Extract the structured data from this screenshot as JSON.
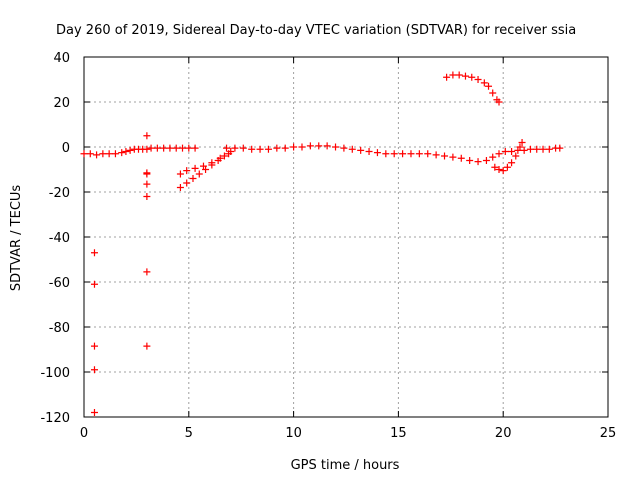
{
  "chart_data": {
    "type": "scatter",
    "title": "Day 260 of 2019, Sidereal Day-to-day VTEC variation (SDTVAR) for receiver ssia",
    "xlabel": "GPS time / hours",
    "ylabel": "SDTVAR / TECUs",
    "xlim": [
      0,
      25
    ],
    "ylim": [
      -120,
      40
    ],
    "xticks": [
      0,
      5,
      10,
      15,
      20,
      25
    ],
    "yticks": [
      40,
      20,
      0,
      -20,
      -40,
      -60,
      -80,
      -100,
      -120
    ],
    "xtick_labels": [
      "0",
      "5",
      "10",
      "15",
      "20",
      "25"
    ],
    "ytick_labels": [
      "40",
      "20",
      "0",
      "-20",
      "-40",
      "-60",
      "-80",
      "-100",
      "-120"
    ],
    "grid": true,
    "marker": "+",
    "color": "#ff0000",
    "series": [
      {
        "name": "main-band",
        "points": [
          [
            0.0,
            -3
          ],
          [
            0.3,
            -3
          ],
          [
            0.6,
            -3.5
          ],
          [
            0.9,
            -3
          ],
          [
            1.2,
            -3
          ],
          [
            1.5,
            -3
          ],
          [
            1.8,
            -2.5
          ],
          [
            2.0,
            -2
          ],
          [
            2.2,
            -1.5
          ],
          [
            2.4,
            -1
          ],
          [
            2.6,
            -1
          ],
          [
            2.8,
            -1
          ],
          [
            3.0,
            -1
          ],
          [
            3.2,
            -0.5
          ],
          [
            3.5,
            -0.5
          ],
          [
            3.8,
            -0.5
          ],
          [
            4.1,
            -0.5
          ],
          [
            4.4,
            -0.5
          ],
          [
            4.7,
            -0.5
          ],
          [
            5.0,
            -0.5
          ],
          [
            5.3,
            -0.5
          ],
          [
            6.8,
            -0.5
          ],
          [
            7.2,
            -0.5
          ],
          [
            7.6,
            -0.5
          ],
          [
            8.0,
            -1
          ],
          [
            8.4,
            -1
          ],
          [
            8.8,
            -1
          ],
          [
            9.2,
            -0.5
          ],
          [
            9.6,
            -0.5
          ],
          [
            10.0,
            0
          ],
          [
            10.4,
            0
          ],
          [
            10.8,
            0.5
          ],
          [
            11.2,
            0.5
          ],
          [
            11.6,
            0.5
          ],
          [
            12.0,
            0
          ],
          [
            12.4,
            -0.5
          ],
          [
            12.8,
            -1
          ],
          [
            13.2,
            -1.5
          ],
          [
            13.6,
            -2
          ],
          [
            14.0,
            -2.5
          ],
          [
            14.4,
            -3
          ],
          [
            14.8,
            -3
          ],
          [
            15.2,
            -3
          ],
          [
            15.6,
            -3
          ],
          [
            16.0,
            -3
          ],
          [
            16.4,
            -3
          ],
          [
            16.8,
            -3.5
          ],
          [
            17.2,
            -4
          ],
          [
            17.6,
            -4.5
          ],
          [
            18.0,
            -5
          ],
          [
            18.4,
            -6
          ],
          [
            18.8,
            -6.5
          ],
          [
            19.2,
            -6
          ],
          [
            19.5,
            -4.5
          ],
          [
            19.8,
            -3
          ],
          [
            20.1,
            -2
          ],
          [
            20.4,
            -2
          ],
          [
            20.7,
            -1.5
          ],
          [
            21.0,
            -1.5
          ],
          [
            21.3,
            -1
          ],
          [
            21.6,
            -1
          ],
          [
            21.9,
            -1
          ],
          [
            22.2,
            -1
          ],
          [
            22.5,
            -0.5
          ],
          [
            22.7,
            -0.5
          ]
        ]
      },
      {
        "name": "lower-branch-5h",
        "points": [
          [
            4.6,
            -18
          ],
          [
            4.9,
            -16
          ],
          [
            5.2,
            -14
          ],
          [
            5.5,
            -12
          ],
          [
            5.8,
            -10
          ],
          [
            6.1,
            -8
          ],
          [
            6.4,
            -6
          ],
          [
            6.7,
            -4
          ],
          [
            7.0,
            -2
          ]
        ]
      },
      {
        "name": "second-branch-5h",
        "points": [
          [
            4.6,
            -12
          ],
          [
            4.9,
            -10.5
          ],
          [
            5.3,
            -9.5
          ],
          [
            5.7,
            -8.5
          ],
          [
            6.1,
            -7
          ],
          [
            6.5,
            -5
          ],
          [
            6.9,
            -3
          ]
        ]
      },
      {
        "name": "arc-18h",
        "points": [
          [
            17.3,
            31
          ],
          [
            17.6,
            32
          ],
          [
            17.9,
            32
          ],
          [
            18.2,
            31.5
          ],
          [
            18.5,
            31
          ],
          [
            18.8,
            30
          ],
          [
            19.1,
            28.5
          ],
          [
            19.3,
            27
          ],
          [
            19.5,
            24
          ],
          [
            19.7,
            21
          ],
          [
            19.8,
            20
          ]
        ]
      },
      {
        "name": "dip-20h",
        "points": [
          [
            19.6,
            -9
          ],
          [
            19.8,
            -10
          ],
          [
            20.0,
            -10.5
          ],
          [
            20.2,
            -9
          ],
          [
            20.4,
            -7
          ],
          [
            20.6,
            -4
          ],
          [
            20.8,
            0
          ],
          [
            20.9,
            2
          ]
        ]
      },
      {
        "name": "outliers",
        "points": [
          [
            0.5,
            -47
          ],
          [
            0.5,
            -61
          ],
          [
            0.5,
            -88.5
          ],
          [
            0.5,
            -99
          ],
          [
            0.5,
            -118
          ],
          [
            3.0,
            5
          ],
          [
            3.0,
            -11.5
          ],
          [
            3.0,
            -12
          ],
          [
            3.0,
            -16.5
          ],
          [
            3.0,
            -22
          ],
          [
            3.0,
            -55.5
          ],
          [
            3.0,
            -88.5
          ]
        ]
      }
    ]
  }
}
